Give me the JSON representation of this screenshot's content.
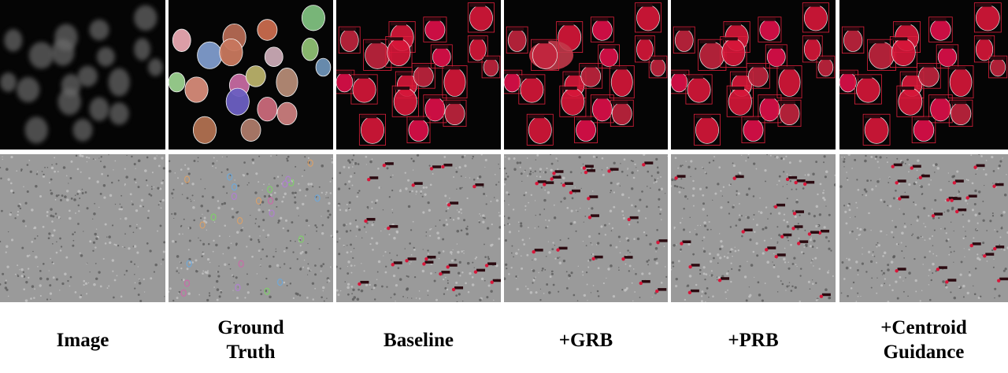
{
  "columns": [
    {
      "key": "image",
      "caption": [
        "Image"
      ]
    },
    {
      "key": "gt",
      "caption": [
        "Ground",
        "Truth"
      ]
    },
    {
      "key": "baseline",
      "caption": [
        "Baseline"
      ]
    },
    {
      "key": "grb",
      "caption": [
        "+GRB"
      ]
    },
    {
      "key": "prb",
      "caption": [
        "+PRB"
      ]
    },
    {
      "key": "centroid",
      "caption": [
        "+Centroid",
        "Guidance"
      ]
    }
  ],
  "colors": {
    "fluor_background": "#050505",
    "phase_background": "#9a9a9a",
    "prediction_mask": "#d8173a",
    "prediction_box": "#e0203c"
  },
  "rows": [
    {
      "key": "fluorescence",
      "type": "fluorescent-nuclei"
    },
    {
      "key": "phase_contrast",
      "type": "phase-contrast-cells"
    }
  ]
}
